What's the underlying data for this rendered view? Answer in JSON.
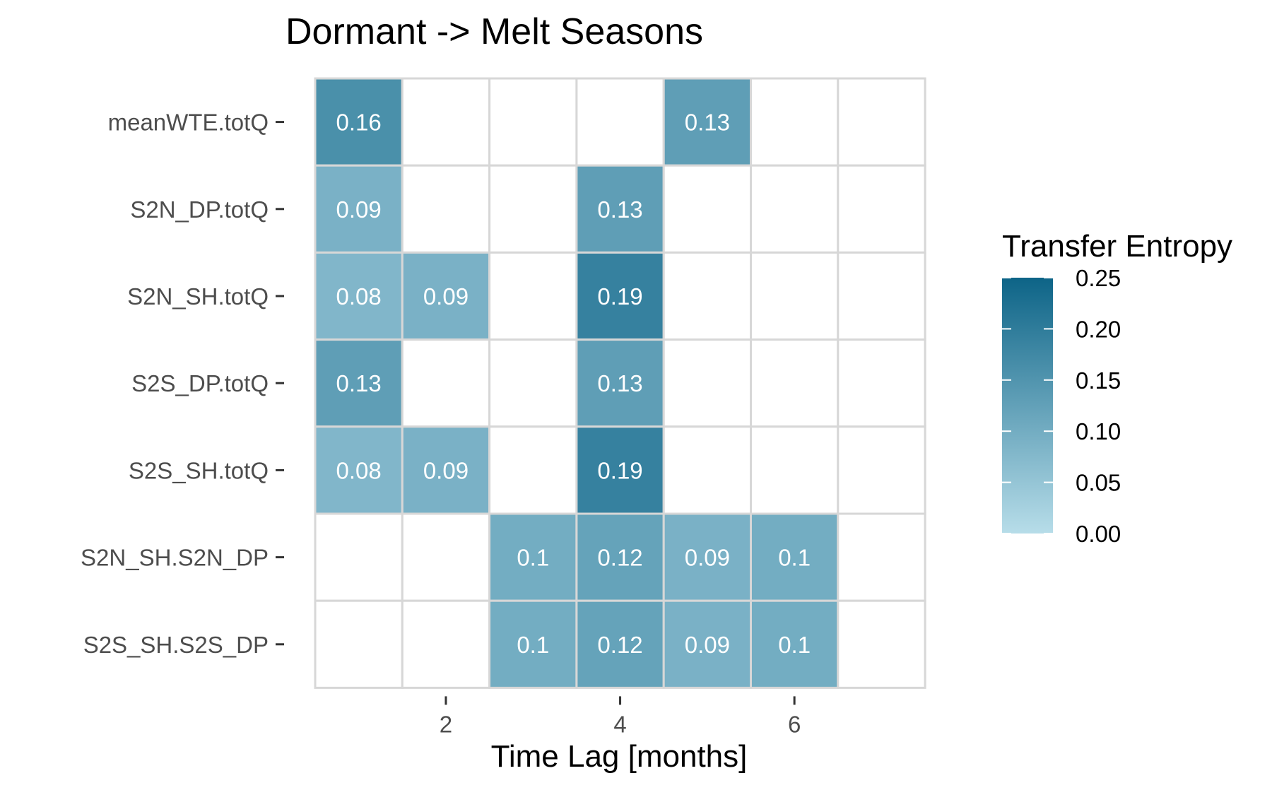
{
  "chart_data": {
    "type": "heatmap",
    "title": "Dormant -> Melt Seasons",
    "xlabel": "Time Lag [months]",
    "ylabel": "",
    "x": [
      1,
      2,
      3,
      4,
      5,
      6,
      7
    ],
    "x_ticks": [
      "2",
      "4",
      "6"
    ],
    "x_tick_values": [
      2,
      4,
      6
    ],
    "y_categories": [
      "meanWTE.totQ",
      "S2N_DP.totQ",
      "S2N_SH.totQ",
      "S2S_DP.totQ",
      "S2S_SH.totQ",
      "S2N_SH.S2N_DP",
      "S2S_SH.S2S_DP"
    ],
    "values": [
      [
        0.16,
        null,
        null,
        null,
        0.13,
        null,
        null
      ],
      [
        0.09,
        null,
        null,
        0.13,
        null,
        null,
        null
      ],
      [
        0.08,
        0.09,
        null,
        0.19,
        null,
        null,
        null
      ],
      [
        0.13,
        null,
        null,
        0.13,
        null,
        null,
        null
      ],
      [
        0.08,
        0.09,
        null,
        0.19,
        null,
        null,
        null
      ],
      [
        null,
        null,
        0.1,
        0.12,
        0.09,
        0.1,
        null
      ],
      [
        null,
        null,
        0.1,
        0.12,
        0.09,
        0.1,
        null
      ]
    ],
    "labels": [
      [
        "0.16",
        "",
        "",
        "",
        "0.13",
        "",
        ""
      ],
      [
        "0.09",
        "",
        "",
        "0.13",
        "",
        "",
        ""
      ],
      [
        "0.08",
        "0.09",
        "",
        "0.19",
        "",
        "",
        ""
      ],
      [
        "0.13",
        "",
        "",
        "0.13",
        "",
        "",
        ""
      ],
      [
        "0.08",
        "0.09",
        "",
        "0.19",
        "",
        "",
        ""
      ],
      [
        "",
        "",
        "0.1",
        "0.12",
        "0.09",
        "0.1",
        ""
      ],
      [
        "",
        "",
        "0.1",
        "0.12",
        "0.09",
        "0.1",
        ""
      ]
    ],
    "legend": {
      "title": "Transfer Entropy",
      "ticks": [
        "0.25",
        "0.20",
        "0.15",
        "0.10",
        "0.05",
        "0.00"
      ],
      "tick_values": [
        0.25,
        0.2,
        0.15,
        0.1,
        0.05,
        0.0
      ],
      "range": [
        0,
        0.25
      ],
      "position": "right"
    },
    "colors": {
      "low": "#b7dde9",
      "high": "#0d6487",
      "empty": "#ffffff",
      "grid": "#d7d7d7",
      "cell_text": "#ffffff",
      "axis_text": "#4d4d4d",
      "title_text": "#000000"
    }
  }
}
